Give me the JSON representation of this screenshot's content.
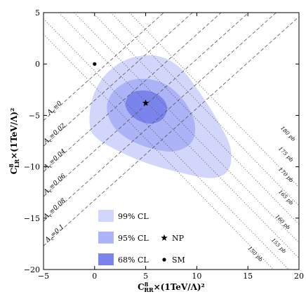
{
  "chart_data": {
    "type": "contour",
    "xlabel": {
      "main": "C",
      "sup": "8",
      "sub": "RR",
      "rest": "×(1TeV/Λ)²"
    },
    "ylabel": {
      "main": "C",
      "sup": "8",
      "sub": "LR",
      "rest": "×(1TeV/Λ)²"
    },
    "xlim": [
      -5,
      20
    ],
    "ylim": [
      -20,
      5
    ],
    "xticks": [
      -5,
      0,
      5,
      10,
      15,
      20
    ],
    "yticks": [
      -20,
      -15,
      -10,
      -5,
      0,
      5
    ],
    "xtick_labels": [
      "−5",
      "0",
      "5",
      "10",
      "15",
      "20"
    ],
    "ytick_labels": [
      "−20",
      "−15",
      "−10",
      "−5",
      "0",
      "5"
    ],
    "regions": [
      {
        "name": "99% CL",
        "color": "#d3d6fb",
        "points": [
          [
            -0.5,
            -5.5
          ],
          [
            -0.1,
            -3.0
          ],
          [
            1.2,
            -0.9
          ],
          [
            3.3,
            0.5
          ],
          [
            6.0,
            0.8
          ],
          [
            8.3,
            -0.3
          ],
          [
            10.3,
            -2.8
          ],
          [
            12.2,
            -5.8
          ],
          [
            13.3,
            -8.2
          ],
          [
            13.1,
            -10.3
          ],
          [
            11.5,
            -11.1
          ],
          [
            8.5,
            -10.6
          ],
          [
            5.0,
            -9.6
          ],
          [
            2.0,
            -8.3
          ],
          [
            0.0,
            -7.0
          ]
        ]
      },
      {
        "name": "95% CL",
        "color": "#acb3f6",
        "points": [
          [
            1.2,
            -4.2
          ],
          [
            1.9,
            -2.6
          ],
          [
            3.5,
            -1.6
          ],
          [
            5.5,
            -1.5
          ],
          [
            7.3,
            -2.2
          ],
          [
            8.9,
            -3.8
          ],
          [
            9.8,
            -5.8
          ],
          [
            9.5,
            -7.6
          ],
          [
            7.8,
            -8.5
          ],
          [
            5.5,
            -8.2
          ],
          [
            3.3,
            -7.3
          ],
          [
            1.8,
            -6.0
          ]
        ]
      },
      {
        "name": "68% CL",
        "color": "#7b84ec",
        "points": [
          [
            3.0,
            -3.9
          ],
          [
            3.4,
            -3.0
          ],
          [
            4.3,
            -2.6
          ],
          [
            5.6,
            -2.7
          ],
          [
            6.7,
            -3.4
          ],
          [
            7.1,
            -4.4
          ],
          [
            6.6,
            -5.4
          ],
          [
            5.5,
            -5.8
          ],
          [
            4.3,
            -5.5
          ],
          [
            3.4,
            -4.8
          ]
        ]
      }
    ],
    "points": [
      {
        "name": "NP",
        "x": 5.0,
        "y": -3.8,
        "marker": "star"
      },
      {
        "name": "SM",
        "x": 0.0,
        "y": 0.0,
        "marker": "dot"
      }
    ],
    "asymmetry_lines": [
      {
        "label": "A_c=0",
        "main": "A",
        "sub": "c",
        "value": "=0",
        "p1": [
          -5.0,
          -5.5
        ],
        "p2": [
          20.0,
          16.8
        ],
        "lx": -3.8,
        "ly": -4.4
      },
      {
        "label": "A_c=0.02",
        "main": "A",
        "sub": "c",
        "value": "=0.02",
        "p1": [
          -5.0,
          -8.0
        ],
        "p2": [
          20.0,
          14.3
        ],
        "lx": -3.8,
        "ly": -6.9
      },
      {
        "label": "A_c=0.04",
        "main": "A",
        "sub": "c",
        "value": "=0.04",
        "p1": [
          -5.0,
          -10.5
        ],
        "p2": [
          20.0,
          11.8
        ],
        "lx": -3.8,
        "ly": -9.4
      },
      {
        "label": "A_c=0.06",
        "main": "A",
        "sub": "c",
        "value": "=0.06",
        "p1": [
          -5.0,
          -12.9
        ],
        "p2": [
          20.0,
          9.4
        ],
        "lx": -3.8,
        "ly": -11.8
      },
      {
        "label": "A_c=0.08",
        "main": "A",
        "sub": "c",
        "value": "=0.08",
        "p1": [
          -5.0,
          -15.3
        ],
        "p2": [
          20.0,
          7.0
        ],
        "lx": -3.8,
        "ly": -14.2
      },
      {
        "label": "A_c=0.1",
        "main": "A",
        "sub": "c",
        "value": "=0.1",
        "p1": [
          -5.0,
          -17.7
        ],
        "p2": [
          20.0,
          4.6
        ],
        "lx": -3.8,
        "ly": -16.6
      }
    ],
    "cross_section_lines": [
      {
        "label": "150 pb",
        "p1": [
          -5.0,
          2.9
        ],
        "p2": [
          17.5,
          -20.0
        ],
        "lx": 15.6,
        "ly": -18.6
      },
      {
        "label": "155 pb",
        "p1": [
          -5.0,
          4.4
        ],
        "p2": [
          19.0,
          -20.0
        ],
        "lx": 17.9,
        "ly": -17.8
      },
      {
        "label": "160 pb",
        "p1": [
          -3.5,
          5.0
        ],
        "p2": [
          20.0,
          -18.9
        ],
        "lx": 18.3,
        "ly": -15.5
      },
      {
        "label": "165 pb",
        "p1": [
          -2.0,
          5.0
        ],
        "p2": [
          20.0,
          -17.4
        ],
        "lx": 18.6,
        "ly": -13.1
      },
      {
        "label": "170 pb",
        "p1": [
          -0.2,
          5.0
        ],
        "p2": [
          20.0,
          -15.6
        ],
        "lx": 18.6,
        "ly": -10.9
      },
      {
        "label": "175 pb",
        "p1": [
          1.6,
          5.0
        ],
        "p2": [
          20.0,
          -13.8
        ],
        "lx": 18.6,
        "ly": -8.9
      },
      {
        "label": "180 pb",
        "p1": [
          3.4,
          5.0
        ],
        "p2": [
          20.0,
          -12.0
        ],
        "lx": 18.8,
        "ly": -6.9
      }
    ],
    "legend": [
      {
        "label": "99% CL",
        "swatch": "#d3d6fb"
      },
      {
        "label": "95% CL",
        "swatch": "#acb3f6"
      },
      {
        "label": "68% CL",
        "swatch": "#7b84ec"
      },
      {
        "label": "NP",
        "marker": "star"
      },
      {
        "label": "SM",
        "marker": "dot"
      }
    ],
    "legend_placement": "bottom-left",
    "grid": false
  }
}
